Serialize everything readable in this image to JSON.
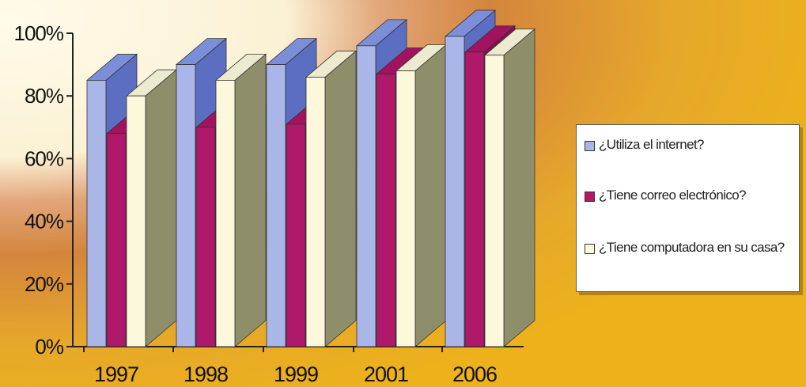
{
  "chart_data": {
    "type": "bar",
    "categories": [
      "1997",
      "1998",
      "1999",
      "2001",
      "2006"
    ],
    "series": [
      {
        "name": "¿Utiliza el internet?",
        "color": "#aab6e8",
        "values": [
          85,
          90,
          90,
          96,
          99
        ]
      },
      {
        "name": "¿Tiene correo electrónico?",
        "color": "#b0186a",
        "values": [
          68,
          70,
          71,
          87,
          94
        ]
      },
      {
        "name": "¿Tiene computadora en su casa?",
        "color": "#fcf8dc",
        "values": [
          80,
          85,
          86,
          88,
          93
        ]
      }
    ],
    "yticks": [
      "0%",
      "20%",
      "40%",
      "60%",
      "80%",
      "100%"
    ],
    "ylim": [
      0,
      100
    ],
    "grid": false,
    "legend_position": "right",
    "three_d": true
  }
}
